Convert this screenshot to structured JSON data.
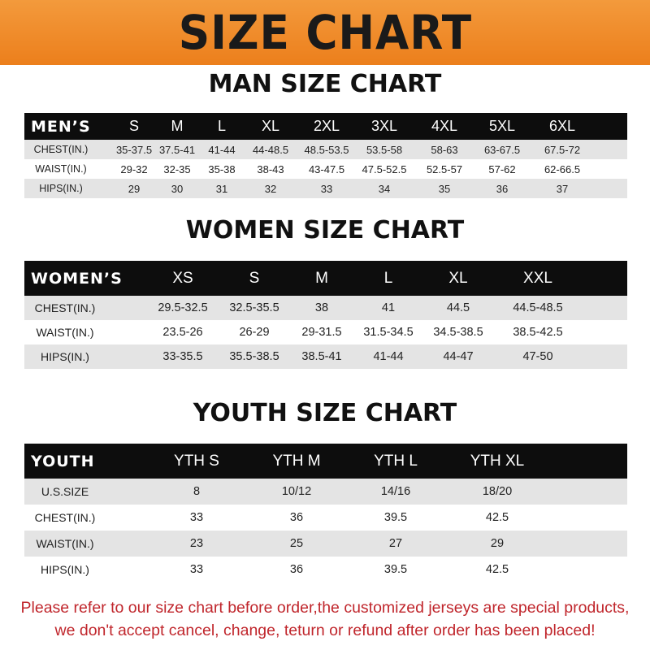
{
  "banner_title": "SIZE CHART",
  "men": {
    "title": "MAN SIZE CHART",
    "header": [
      "MEN’S",
      "S",
      "M",
      "L",
      "XL",
      "2XL",
      "3XL",
      "4XL",
      "5XL",
      "6XL"
    ],
    "rows": [
      [
        "CHEST(IN.)",
        "35-37.5",
        "37.5-41",
        "41-44",
        "44-48.5",
        "48.5-53.5",
        "53.5-58",
        "58-63",
        "63-67.5",
        "67.5-72"
      ],
      [
        "WAIST(IN.)",
        "29-32",
        "32-35",
        "35-38",
        "38-43",
        "43-47.5",
        "47.5-52.5",
        "52.5-57",
        "57-62",
        "62-66.5"
      ],
      [
        "HIPS(IN.)",
        "29",
        "30",
        "31",
        "32",
        "33",
        "34",
        "35",
        "36",
        "37"
      ]
    ]
  },
  "women": {
    "title": "WOMEN SIZE CHART",
    "header": [
      "WOMEN’S",
      "XS",
      "S",
      "M",
      "L",
      "XL",
      "XXL"
    ],
    "rows": [
      [
        "CHEST(IN.)",
        "29.5-32.5",
        "32.5-35.5",
        "38",
        "41",
        "44.5",
        "44.5-48.5"
      ],
      [
        "WAIST(IN.)",
        "23.5-26",
        "26-29",
        "29-31.5",
        "31.5-34.5",
        "34.5-38.5",
        "38.5-42.5"
      ],
      [
        "HIPS(IN.)",
        "33-35.5",
        "35.5-38.5",
        "38.5-41",
        "41-44",
        "44-47",
        "47-50"
      ]
    ]
  },
  "youth": {
    "title": "YOUTH SIZE CHART",
    "header": [
      "YOUTH",
      "YTH S",
      "YTH M",
      "YTH L",
      "YTH XL"
    ],
    "rows": [
      [
        "U.S.SIZE",
        "8",
        "10/12",
        "14/16",
        "18/20"
      ],
      [
        "CHEST(IN.)",
        "33",
        "36",
        "39.5",
        "42.5"
      ],
      [
        "WAIST(IN.)",
        "23",
        "25",
        "27",
        "29"
      ],
      [
        "HIPS(IN.)",
        "33",
        "36",
        "39.5",
        "42.5"
      ]
    ]
  },
  "footer": [
    "Please refer to our size chart before order,the customized jerseys are special products,",
    "we don't accept cancel, change, teturn or refund after order has been placed!"
  ],
  "colors": {
    "banner": "#ef8a28",
    "header_bg": "#0d0d0d",
    "stripe": "#e4e4e4",
    "footer_text": "#c0262c"
  }
}
